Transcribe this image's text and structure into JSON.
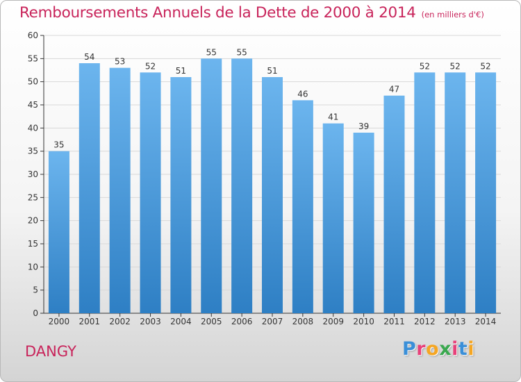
{
  "chart": {
    "title": "Remboursements Annuels de la Dette de 2000 à 2014",
    "subtitle": "(en milliers d'€)",
    "place": "DANGY"
  },
  "logo": {
    "text": "Proxiti",
    "letter_colors": [
      "#3a8fd8",
      "#e8407a",
      "#f5a623",
      "#3aa84f",
      "#e8407a",
      "#3a8fd8",
      "#f5a623"
    ]
  },
  "colors": {
    "bar_top": "#6cb5ee",
    "bar_bottom": "#2e7fc4",
    "title": "#c8235a",
    "axis": "#333333",
    "grid": "#d8d8d8"
  },
  "chart_data": {
    "type": "bar",
    "categories": [
      "2000",
      "2001",
      "2002",
      "2003",
      "2004",
      "2005",
      "2006",
      "2007",
      "2008",
      "2009",
      "2010",
      "2011",
      "2012",
      "2013",
      "2014"
    ],
    "values": [
      35,
      54,
      53,
      52,
      51,
      55,
      55,
      51,
      46,
      41,
      39,
      47,
      52,
      52,
      52
    ],
    "ylim": [
      0,
      60
    ],
    "yticks": [
      0,
      5,
      10,
      15,
      20,
      25,
      30,
      35,
      40,
      45,
      50,
      55,
      60
    ],
    "grid": true,
    "data_labels": true
  }
}
